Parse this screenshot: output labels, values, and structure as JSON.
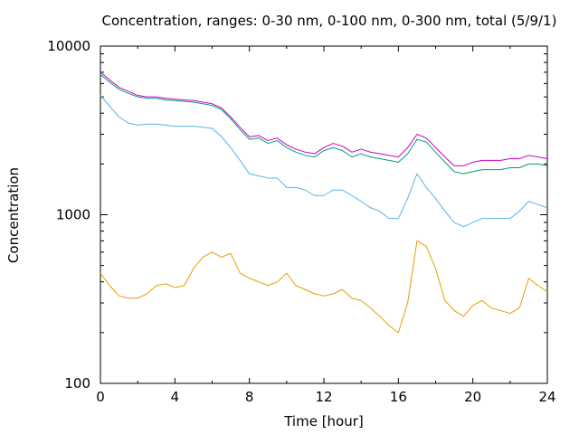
{
  "chart_data": {
    "type": "line",
    "title": "Concentration, ranges: 0-30 nm, 0-100 nm, 0-300 nm, total (5/9/1)",
    "xlabel": "Time [hour]",
    "ylabel": "Concentration",
    "xlim": [
      0,
      24
    ],
    "ylim": [
      100,
      10000
    ],
    "yscale": "log",
    "grid": false,
    "x_ticks": [
      "0",
      "4",
      "8",
      "12",
      "16",
      "20",
      "24"
    ],
    "y_ticks": [
      "100",
      "1000",
      "10000"
    ],
    "x": [
      0,
      0.5,
      1,
      1.5,
      2,
      2.5,
      3,
      3.5,
      4,
      4.5,
      5,
      5.5,
      6,
      6.5,
      7,
      7.5,
      8,
      8.5,
      9,
      9.5,
      10,
      10.5,
      11,
      11.5,
      12,
      12.5,
      13,
      13.5,
      14,
      14.5,
      15,
      15.5,
      16,
      16.5,
      17,
      17.5,
      18,
      18.5,
      19,
      19.5,
      20,
      20.5,
      21,
      21.5,
      22,
      22.5,
      23,
      23.5,
      24
    ],
    "series": [
      {
        "color": "#cc00cc",
        "values": [
          7000,
          6300,
          5700,
          5400,
          5100,
          5000,
          5000,
          4900,
          4850,
          4800,
          4750,
          4650,
          4550,
          4300,
          3800,
          3300,
          2900,
          2950,
          2750,
          2850,
          2600,
          2450,
          2350,
          2300,
          2500,
          2650,
          2550,
          2350,
          2450,
          2350,
          2300,
          2250,
          2200,
          2500,
          3000,
          2850,
          2500,
          2200,
          1950,
          1950,
          2050,
          2100,
          2100,
          2100,
          2150,
          2150,
          2250,
          2200,
          2150
        ]
      },
      {
        "color": "#009e73",
        "values": [
          6800,
          6100,
          5550,
          5250,
          5000,
          4900,
          4900,
          4800,
          4750,
          4700,
          4650,
          4550,
          4450,
          4200,
          3700,
          3200,
          2800,
          2850,
          2650,
          2750,
          2500,
          2350,
          2250,
          2200,
          2400,
          2500,
          2400,
          2200,
          2300,
          2200,
          2150,
          2100,
          2050,
          2300,
          2800,
          2700,
          2350,
          2050,
          1800,
          1750,
          1800,
          1850,
          1850,
          1850,
          1900,
          1900,
          2000,
          2000,
          1950
        ]
      },
      {
        "color": "#56b4e9",
        "values": [
          5100,
          4400,
          3800,
          3500,
          3400,
          3450,
          3450,
          3400,
          3350,
          3350,
          3350,
          3300,
          3250,
          2900,
          2500,
          2100,
          1750,
          1700,
          1650,
          1650,
          1450,
          1450,
          1400,
          1300,
          1300,
          1400,
          1400,
          1300,
          1200,
          1100,
          1050,
          950,
          950,
          1250,
          1750,
          1450,
          1250,
          1050,
          900,
          850,
          900,
          950,
          950,
          950,
          950,
          1050,
          1200,
          1150,
          1100
        ]
      },
      {
        "color": "#e69f00",
        "values": [
          450,
          380,
          330,
          320,
          320,
          340,
          380,
          390,
          370,
          380,
          480,
          560,
          600,
          560,
          590,
          450,
          420,
          400,
          380,
          400,
          450,
          380,
          360,
          340,
          330,
          340,
          360,
          320,
          310,
          280,
          250,
          220,
          200,
          300,
          700,
          650,
          480,
          310,
          270,
          250,
          290,
          310,
          280,
          270,
          260,
          280,
          420,
          380,
          350
        ]
      }
    ]
  }
}
